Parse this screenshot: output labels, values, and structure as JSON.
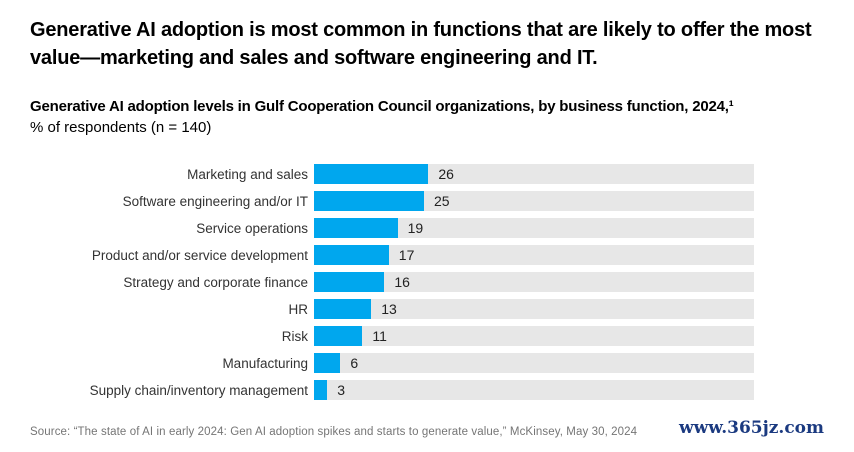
{
  "header": {
    "title": "Generative AI adoption is most common in functions that are likely to offer the most value—marketing and sales and software engineering and IT."
  },
  "chart_data": {
    "type": "bar",
    "orientation": "horizontal",
    "title": "Generative AI adoption levels in Gulf Cooperation Council organizations, by business function, 2024,¹",
    "subtitle": "% of respondents (n = 140)",
    "categories": [
      "Marketing and sales",
      "Software engineering and/or IT",
      "Service operations",
      "Product and/or service development",
      "Strategy and corporate finance",
      "HR",
      "Risk",
      "Manufacturing",
      "Supply chain/inventory management"
    ],
    "values": [
      26,
      25,
      19,
      17,
      16,
      13,
      11,
      6,
      3
    ],
    "xlim": [
      0,
      100
    ],
    "xlabel": "",
    "ylabel": "",
    "grid": false,
    "legend": false,
    "value_labels_shown": true,
    "bar_color": "#00a7ee",
    "track_color": "#e7e7e7"
  },
  "footer": {
    "source": "Source: “The state of AI in early 2024: Gen AI adoption spikes and starts to generate value,” McKinsey, May 30, 2024",
    "watermark": "www.365jz.com"
  }
}
